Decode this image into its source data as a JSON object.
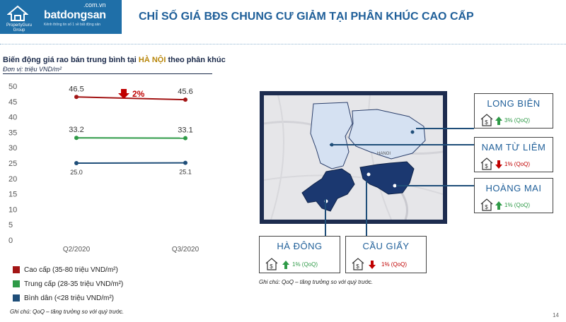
{
  "header": {
    "title": "CHỈ SỐ GIÁ BĐS CHUNG CƯ GIẢM TẠI PHÂN KHÚC CAO CẤP",
    "brand_pg": "PropertyGuru Group",
    "brand_bds_dotcom": ".com.vn",
    "brand_bds": "batdongsan",
    "brand_bds_tag": "Kênh thông tin số 1 về bất động sản",
    "logo_color": "#1f6fa8",
    "title_color": "#1f5f99"
  },
  "left": {
    "subtitle_pre": "Biến động giá rao bán trung bình tại ",
    "subtitle_hl": "HÀ NỘI",
    "subtitle_post": " theo phân khúc",
    "unit": "Đơn vị: triệu VND/m²",
    "note": "Ghi chú: QoQ – tăng trưởng so với quý trước."
  },
  "chart_data": {
    "type": "line",
    "categories": [
      "Q2/2020",
      "Q3/2020"
    ],
    "ylim": [
      0,
      50
    ],
    "yticks": [
      "0",
      "5",
      "10",
      "15",
      "20",
      "25",
      "30",
      "35",
      "40",
      "45",
      "50"
    ],
    "series": [
      {
        "name": "Cao cấp (35-80 triệu VND/m²)",
        "values": [
          46.5,
          45.6
        ],
        "labels": [
          "46.5",
          "45.6"
        ],
        "color": "#a31515"
      },
      {
        "name": "Trung cấp (28-35 triệu VND/m²)",
        "values": [
          33.2,
          33.1
        ],
        "labels": [
          "33.2",
          "33.1"
        ],
        "color": "#2e9a47"
      },
      {
        "name": "Bình dân (<28 triệu VND/m²)",
        "values": [
          25.0,
          25.1
        ],
        "labels": [
          "25.0",
          "25.1"
        ],
        "color": "#1f4e79"
      }
    ],
    "annotation": {
      "text": "2%",
      "direction": "down",
      "color": "#c00000"
    }
  },
  "right": {
    "note": "Ghi chú: QoQ – tăng trưởng so với quý trước.",
    "districts": [
      {
        "id": "long-bien",
        "name": "LONG BIÊN",
        "change": "3% (QoQ)",
        "direction": "up"
      },
      {
        "id": "nam-tu-liem",
        "name": "NAM TỪ LIÊM",
        "change": "1% (QoQ)",
        "direction": "down"
      },
      {
        "id": "hoang-mai",
        "name": "HOÀNG MAI",
        "change": "1% (QoQ)",
        "direction": "up"
      },
      {
        "id": "ha-dong",
        "name": "HÀ ĐÔNG",
        "change": "1% (QoQ)",
        "direction": "up"
      },
      {
        "id": "cau-giay",
        "name": "CẦU GIẤY",
        "change": "1% (QoQ)",
        "direction": "down"
      }
    ],
    "up_color": "#2e9a47",
    "down_color": "#c00000",
    "map_text": "HANOI"
  },
  "page_number": "14"
}
